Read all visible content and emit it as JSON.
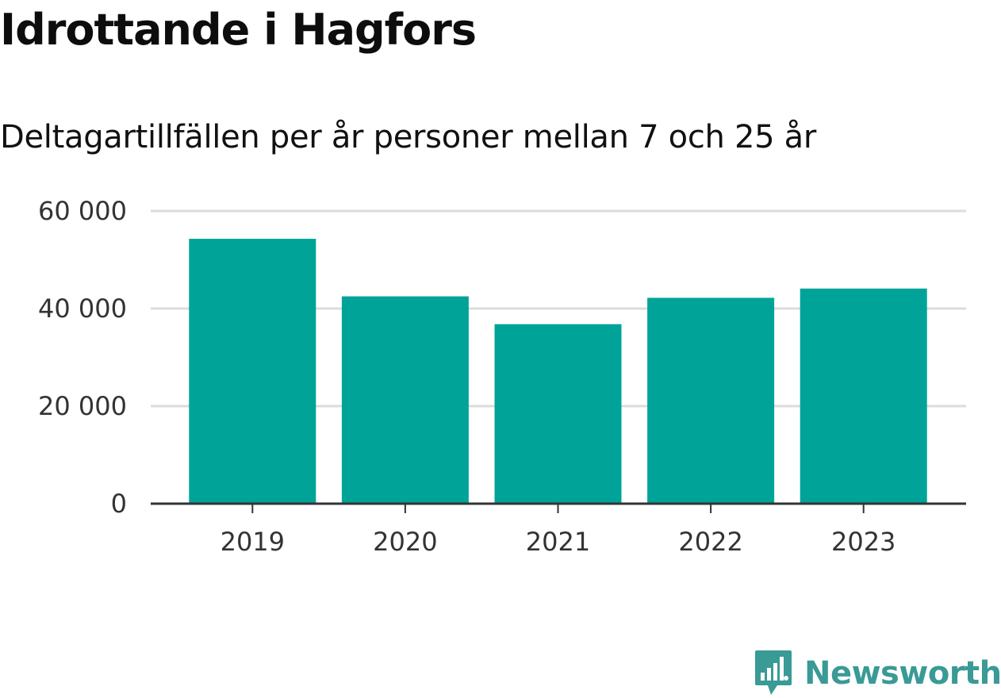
{
  "header": {
    "title": "Idrottande i Hagfors",
    "subtitle": "Deltagartillfällen per år personer mellan 7 och 25 år"
  },
  "chart_data": {
    "type": "bar",
    "categories": [
      "2019",
      "2020",
      "2021",
      "2022",
      "2023"
    ],
    "values": [
      54300,
      42500,
      36800,
      42200,
      44100
    ],
    "ylim": [
      0,
      60000
    ],
    "yticks": [
      0,
      20000,
      40000,
      60000
    ],
    "ytick_labels": [
      "0",
      "20 000",
      "40 000",
      "60 000"
    ],
    "grid": true,
    "bar_color": "#00a398",
    "xlabel": "",
    "ylabel": ""
  },
  "brand": {
    "name": "Newsworthy",
    "logo_icon": "bar-chart-tag-icon",
    "color": "#3a9a96"
  }
}
